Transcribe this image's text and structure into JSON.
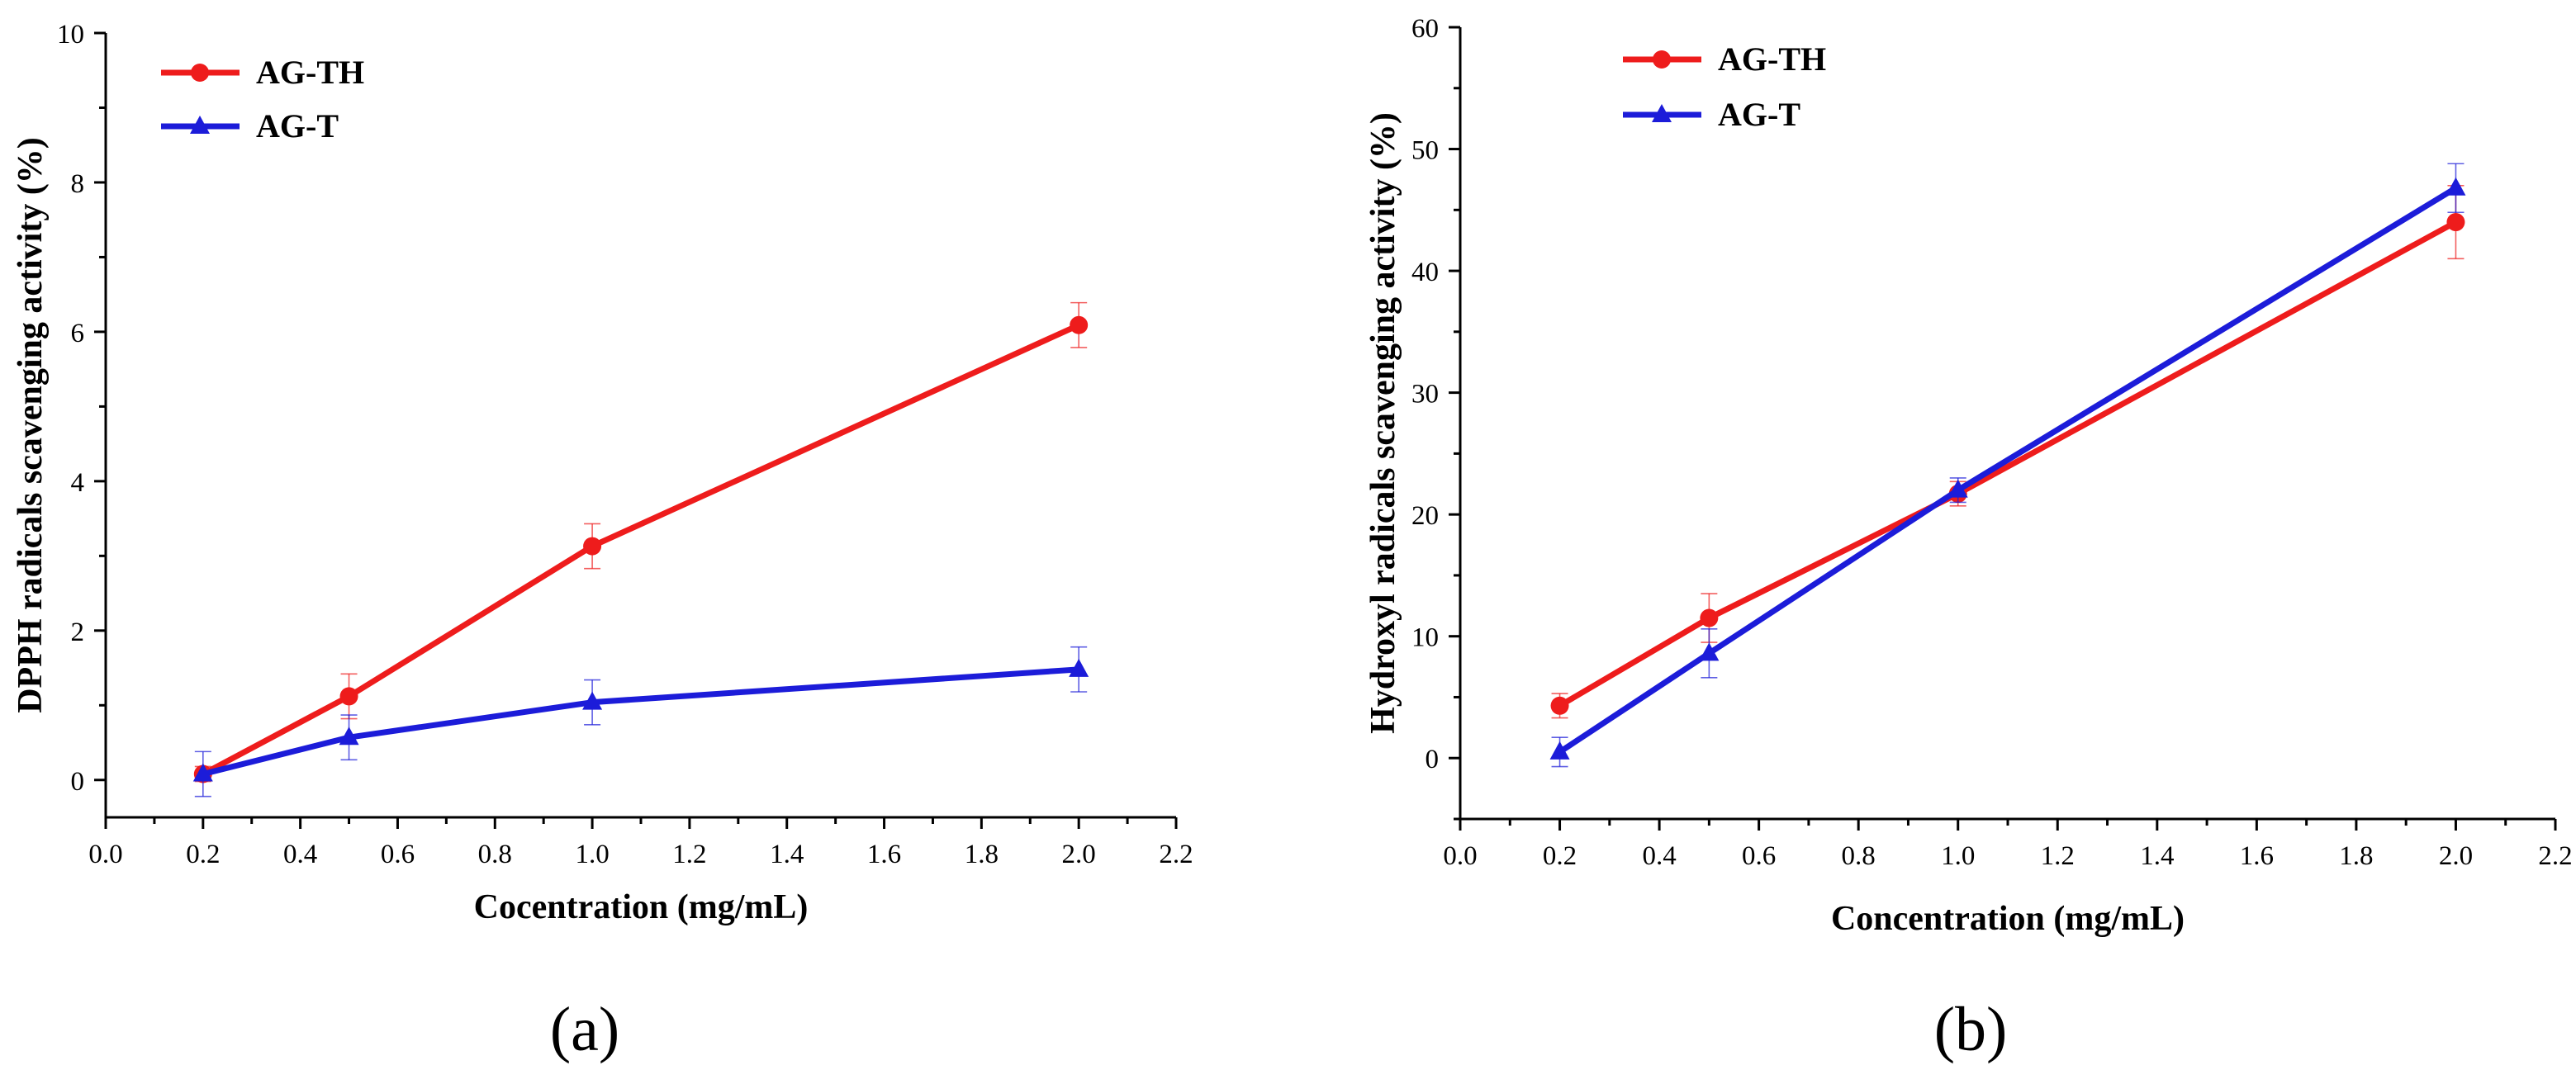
{
  "figure": {
    "panel_a_label": "(a)",
    "panel_b_label": "(b)"
  },
  "chart_data": [
    {
      "type": "line",
      "panel": "a",
      "xlabel": "Cocentration (mg/mL)",
      "ylabel": "DPPH radicals scavenging activity (%)",
      "xlim": [
        0.0,
        2.2
      ],
      "ylim": [
        -0.5,
        10
      ],
      "xticks": [
        0.0,
        0.2,
        0.4,
        0.6,
        0.8,
        1.0,
        1.2,
        1.4,
        1.6,
        1.8,
        2.0,
        2.2
      ],
      "xtick_labels": [
        "0.0",
        "0.2",
        "0.4",
        "0.6",
        "0.8",
        "1.0",
        "1.2",
        "1.4",
        "1.6",
        "1.8",
        "2.0",
        "2.2"
      ],
      "yticks": [
        0,
        2,
        4,
        6,
        8,
        10
      ],
      "ytick_labels": [
        "0",
        "2",
        "4",
        "6",
        "8",
        "10"
      ],
      "legend_position": "top-left",
      "grid": false,
      "x": [
        0.2,
        0.5,
        1.0,
        2.0
      ],
      "series": [
        {
          "name": "AG-TH",
          "color": "#ee1c1c",
          "marker": "circle",
          "values": [
            0.08,
            1.12,
            3.13,
            6.09
          ],
          "errors": [
            0.1,
            0.3,
            0.3,
            0.3
          ]
        },
        {
          "name": "AG-T",
          "color": "#1c1cd9",
          "marker": "triangle",
          "values": [
            0.08,
            0.57,
            1.04,
            1.48
          ],
          "errors": [
            0.3,
            0.3,
            0.3,
            0.3
          ]
        }
      ]
    },
    {
      "type": "line",
      "panel": "b",
      "xlabel": "Concentration (mg/mL)",
      "ylabel": "Hydroxyl radicals scavenging activity (%)",
      "xlim": [
        0.0,
        2.2
      ],
      "ylim": [
        -5,
        60
      ],
      "xticks": [
        0.0,
        0.2,
        0.4,
        0.6,
        0.8,
        1.0,
        1.2,
        1.4,
        1.6,
        1.8,
        2.0,
        2.2
      ],
      "xtick_labels": [
        "0.0",
        "0.2",
        "0.4",
        "0.6",
        "0.8",
        "1.0",
        "1.2",
        "1.4",
        "1.6",
        "1.8",
        "2.0",
        "2.2"
      ],
      "yticks": [
        0,
        10,
        20,
        30,
        40,
        50,
        60
      ],
      "ytick_labels": [
        "0",
        "10",
        "20",
        "30",
        "40",
        "50",
        "60"
      ],
      "legend_position": "top-left",
      "grid": false,
      "x": [
        0.2,
        0.5,
        1.0,
        2.0
      ],
      "series": [
        {
          "name": "AG-TH",
          "color": "#ee1c1c",
          "marker": "circle",
          "values": [
            4.3,
            11.5,
            21.7,
            44.0
          ],
          "errors": [
            1.0,
            2.0,
            1.0,
            3.0
          ]
        },
        {
          "name": "AG-T",
          "color": "#1c1cd9",
          "marker": "triangle",
          "values": [
            0.5,
            8.6,
            22.0,
            46.8
          ],
          "errors": [
            1.2,
            2.0,
            1.0,
            2.0
          ]
        }
      ]
    }
  ]
}
